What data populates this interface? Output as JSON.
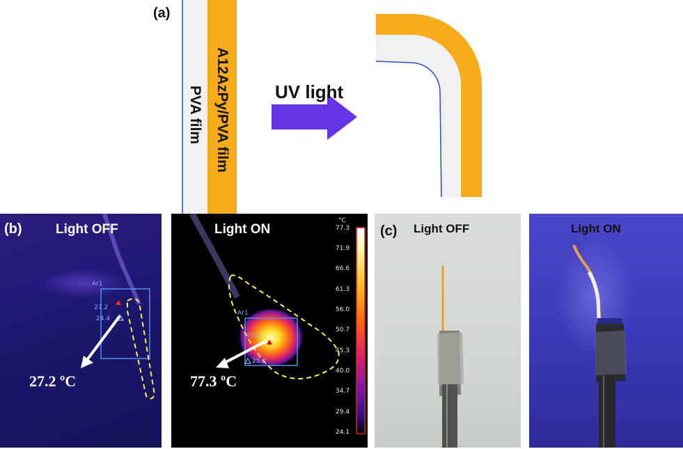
{
  "panel_a": {
    "label": "(a)",
    "film_left_label": "PVA film",
    "film_right_label": "A12AzPy/PVA film",
    "arrow_label": "UV light",
    "colors": {
      "orange": "#f8ac1c",
      "white_film": "#eef0f2",
      "edge_blue": "#2a50b8",
      "arrow": "#6434e6"
    }
  },
  "panel_b": {
    "label": "(b)",
    "off": {
      "title": "Light OFF",
      "box_label": "Ar1",
      "max_reading": "27.2",
      "min_reading": "24.4",
      "temperature": "27.2 ºC"
    },
    "on": {
      "title": "Light ON",
      "box_label": "Ar1",
      "max_reading": "77.3",
      "min_reading": "25.2",
      "temperature": "77.3 ºC"
    },
    "colorbar": {
      "unit": "°C",
      "ticks": [
        "77.3",
        "71.9",
        "66.6",
        "61.3",
        "56.0",
        "50.7",
        "45.3",
        "40.0",
        "34.7",
        "29.4",
        "24.1"
      ]
    }
  },
  "panel_c": {
    "label": "(c)",
    "off_title": "Light OFF",
    "on_title": "Light ON"
  }
}
